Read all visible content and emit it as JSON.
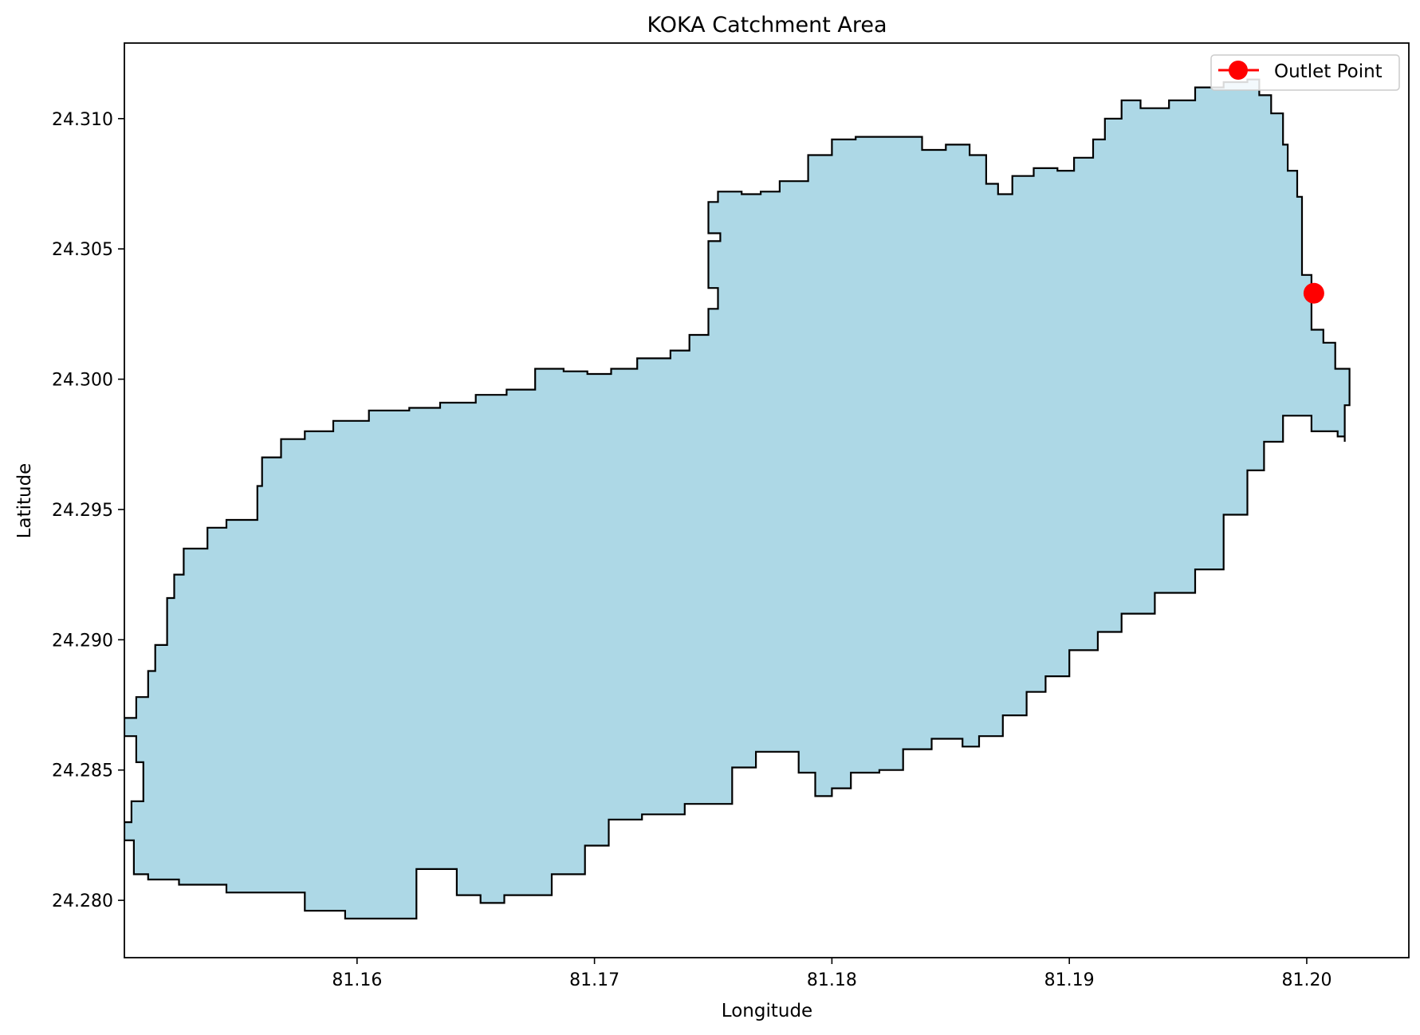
{
  "chart_data": {
    "type": "map",
    "title": "KOKA Catchment Area",
    "xlabel": "Longitude",
    "ylabel": "Latitude",
    "xlim": [
      81.1502,
      81.2043
    ],
    "ylim": [
      24.2778,
      24.3129
    ],
    "xticks": [
      {
        "value": 81.16,
        "label": "81.16"
      },
      {
        "value": 81.17,
        "label": "81.17"
      },
      {
        "value": 81.18,
        "label": "81.18"
      },
      {
        "value": 81.19,
        "label": "81.19"
      },
      {
        "value": 81.2,
        "label": "81.20"
      }
    ],
    "yticks": [
      {
        "value": 24.28,
        "label": "24.280"
      },
      {
        "value": 24.285,
        "label": "24.285"
      },
      {
        "value": 24.29,
        "label": "24.290"
      },
      {
        "value": 24.295,
        "label": "24.295"
      },
      {
        "value": 24.3,
        "label": "24.300"
      },
      {
        "value": 24.305,
        "label": "24.305"
      },
      {
        "value": 24.31,
        "label": "24.310"
      }
    ],
    "grid": false,
    "catchment": {
      "fill": "#add8e6",
      "edge": "#000000",
      "boundary": [
        [
          81.1595,
          24.2793
        ],
        [
          81.1612,
          24.2793
        ],
        [
          81.1625,
          24.2812
        ],
        [
          81.1632,
          24.2812
        ],
        [
          81.1642,
          24.2802
        ],
        [
          81.1652,
          24.2799
        ],
        [
          81.1662,
          24.2802
        ],
        [
          81.1682,
          24.281
        ],
        [
          81.1696,
          24.2821
        ],
        [
          81.1706,
          24.2831
        ],
        [
          81.172,
          24.2833
        ],
        [
          81.1738,
          24.2837
        ],
        [
          81.1748,
          24.2837
        ],
        [
          81.1758,
          24.2851
        ],
        [
          81.1768,
          24.2857
        ],
        [
          81.1778,
          24.2857
        ],
        [
          81.1786,
          24.2849
        ],
        [
          81.1793,
          24.284
        ],
        [
          81.18,
          24.2843
        ],
        [
          81.1808,
          24.2849
        ],
        [
          81.182,
          24.285
        ],
        [
          81.183,
          24.2858
        ],
        [
          81.1842,
          24.2862
        ],
        [
          81.1855,
          24.2859
        ],
        [
          81.1862,
          24.2863
        ],
        [
          81.1872,
          24.2871
        ],
        [
          81.1882,
          24.288
        ],
        [
          81.189,
          24.2886
        ],
        [
          81.19,
          24.2896
        ],
        [
          81.1912,
          24.2903
        ],
        [
          81.1922,
          24.291
        ],
        [
          81.1936,
          24.2918
        ],
        [
          81.1953,
          24.2927
        ],
        [
          81.1965,
          24.2948
        ],
        [
          81.1975,
          24.2965
        ],
        [
          81.1982,
          24.2976
        ],
        [
          81.199,
          24.2986
        ],
        [
          81.1998,
          24.2986
        ],
        [
          81.2002,
          24.298
        ],
        [
          81.2013,
          24.2978
        ],
        [
          81.2016,
          24.2976
        ],
        [
          81.2016,
          24.299
        ],
        [
          81.2018,
          24.2993
        ],
        [
          81.2018,
          24.3004
        ],
        [
          81.2012,
          24.3014
        ],
        [
          81.2007,
          24.3019
        ],
        [
          81.2002,
          24.3021
        ],
        [
          81.2002,
          24.304
        ],
        [
          81.1998,
          24.3043
        ],
        [
          81.1998,
          24.307
        ],
        [
          81.1996,
          24.308
        ],
        [
          81.1992,
          24.309
        ],
        [
          81.199,
          24.3102
        ],
        [
          81.1985,
          24.3109
        ],
        [
          81.198,
          24.3115
        ],
        [
          81.1975,
          24.3114
        ],
        [
          81.1965,
          24.3112
        ],
        [
          81.1953,
          24.3107
        ],
        [
          81.1942,
          24.3104
        ],
        [
          81.193,
          24.3107
        ],
        [
          81.1922,
          24.31
        ],
        [
          81.1915,
          24.3092
        ],
        [
          81.191,
          24.3085
        ],
        [
          81.1902,
          24.308
        ],
        [
          81.1895,
          24.3081
        ],
        [
          81.1885,
          24.3078
        ],
        [
          81.1876,
          24.3071
        ],
        [
          81.187,
          24.3075
        ],
        [
          81.1865,
          24.3086
        ],
        [
          81.1858,
          24.309
        ],
        [
          81.1848,
          24.3088
        ],
        [
          81.1838,
          24.3093
        ],
        [
          81.182,
          24.3093
        ],
        [
          81.181,
          24.3092
        ],
        [
          81.18,
          24.3086
        ],
        [
          81.179,
          24.3076
        ],
        [
          81.1778,
          24.3072
        ],
        [
          81.177,
          24.3071
        ],
        [
          81.1762,
          24.3072
        ],
        [
          81.1752,
          24.3068
        ],
        [
          81.1748,
          24.3056
        ],
        [
          81.1753,
          24.3053
        ],
        [
          81.1748,
          24.3035
        ],
        [
          81.1752,
          24.3027
        ],
        [
          81.1748,
          24.3017
        ],
        [
          81.174,
          24.3011
        ],
        [
          81.1732,
          24.3008
        ],
        [
          81.1718,
          24.3004
        ],
        [
          81.1707,
          24.3002
        ],
        [
          81.1697,
          24.3003
        ],
        [
          81.1687,
          24.3004
        ],
        [
          81.1675,
          24.2996
        ],
        [
          81.1663,
          24.2994
        ],
        [
          81.165,
          24.2991
        ],
        [
          81.1635,
          24.2989
        ],
        [
          81.1622,
          24.2988
        ],
        [
          81.1605,
          24.2984
        ],
        [
          81.159,
          24.298
        ],
        [
          81.1578,
          24.2977
        ],
        [
          81.1568,
          24.297
        ],
        [
          81.156,
          24.2959
        ],
        [
          81.1558,
          24.2946
        ],
        [
          81.1545,
          24.2943
        ],
        [
          81.1537,
          24.2935
        ],
        [
          81.1527,
          24.2925
        ],
        [
          81.1523,
          24.2916
        ],
        [
          81.152,
          24.2898
        ],
        [
          81.1515,
          24.2888
        ],
        [
          81.1512,
          24.2878
        ],
        [
          81.1507,
          24.287
        ],
        [
          81.1502,
          24.2863
        ],
        [
          81.1507,
          24.2853
        ],
        [
          81.151,
          24.2838
        ],
        [
          81.1505,
          24.283
        ],
        [
          81.1502,
          24.2823
        ],
        [
          81.1506,
          24.281
        ],
        [
          81.1512,
          24.2808
        ],
        [
          81.1525,
          24.2806
        ],
        [
          81.1545,
          24.2803
        ],
        [
          81.1568,
          24.2803
        ],
        [
          81.1578,
          24.2796
        ]
      ]
    },
    "outlet": {
      "name": "Outlet Point",
      "lon": 81.2003,
      "lat": 24.3033,
      "color": "#ff0000"
    },
    "legend": {
      "position": "upper right",
      "entries": [
        "Outlet Point"
      ]
    }
  }
}
